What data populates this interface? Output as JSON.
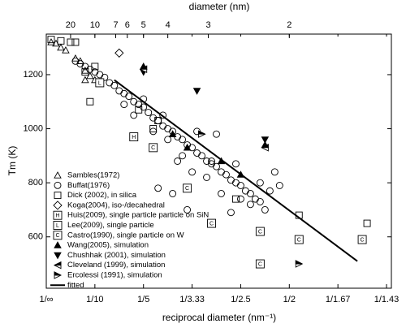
{
  "chart_data": {
    "type": "scatter",
    "x2label": "diameter (nm)",
    "xlabel": "reciprocal diameter (nm⁻¹)",
    "ylabel": "Tm (K)",
    "xlim": [
      0,
      0.71
    ],
    "ylim": [
      410,
      1350
    ],
    "xticks": [
      {
        "value": 0,
        "label": "1/∞"
      },
      {
        "value": 0.1,
        "label": "1/10"
      },
      {
        "value": 0.2,
        "label": "1/5"
      },
      {
        "value": 0.3,
        "label": "1/3.33"
      },
      {
        "value": 0.4,
        "label": "1/2.5"
      },
      {
        "value": 0.5,
        "label": "1/2"
      },
      {
        "value": 0.6,
        "label": "1/1.67"
      },
      {
        "value": 0.7,
        "label": "1/1.43"
      }
    ],
    "x2ticks": [
      20,
      10,
      7,
      6,
      5,
      4,
      3,
      2
    ],
    "yticks": [
      600,
      800,
      1000,
      1200
    ],
    "legend": "lower left",
    "series": [
      {
        "name": "Sambles(1972)",
        "marker": "triangle-up",
        "color": "#000000",
        "x": [
          0.01,
          0.02,
          0.03,
          0.04,
          0.06,
          0.07,
          0.08,
          0.09,
          0.1,
          0.08
        ],
        "values": [
          1320,
          1315,
          1300,
          1290,
          1260,
          1250,
          1215,
          1195,
          1180,
          1180
        ]
      },
      {
        "name": "Buffat(1976)",
        "marker": "circle",
        "color": "#000000",
        "x": [
          0.06,
          0.07,
          0.08,
          0.09,
          0.1,
          0.11,
          0.12,
          0.13,
          0.14,
          0.15,
          0.16,
          0.17,
          0.18,
          0.19,
          0.2,
          0.21,
          0.22,
          0.23,
          0.24,
          0.25,
          0.26,
          0.27,
          0.28,
          0.29,
          0.3,
          0.31,
          0.32,
          0.33,
          0.34,
          0.35,
          0.36,
          0.37,
          0.38,
          0.39,
          0.4,
          0.41,
          0.42,
          0.43,
          0.44,
          0.46,
          0.47,
          0.48,
          0.45,
          0.4,
          0.38,
          0.36,
          0.33,
          0.3,
          0.28,
          0.25,
          0.22,
          0.18,
          0.16,
          0.2,
          0.24,
          0.27,
          0.31,
          0.35,
          0.42,
          0.44,
          0.39,
          0.26,
          0.23,
          0.29,
          0.34
        ],
        "values": [
          1250,
          1240,
          1230,
          1220,
          1210,
          1200,
          1190,
          1170,
          1160,
          1140,
          1130,
          1120,
          1100,
          1090,
          1080,
          1060,
          1040,
          1030,
          1010,
          1000,
          990,
          970,
          960,
          940,
          930,
          910,
          900,
          880,
          870,
          860,
          840,
          830,
          810,
          800,
          790,
          770,
          760,
          740,
          730,
          770,
          840,
          790,
          700,
          740,
          690,
          760,
          820,
          840,
          900,
          960,
          990,
          1050,
          1090,
          1110,
          1050,
          880,
          990,
          980,
          720,
          800,
          870,
          760,
          780,
          700,
          880
        ]
      },
      {
        "name": "Dick (2002), in silica",
        "marker": "square",
        "color": "#000000",
        "x": [
          0.01,
          0.03,
          0.05,
          0.06,
          0.1,
          0.08,
          0.09,
          0.19,
          0.22,
          0.23,
          0.39,
          0.52,
          0.66
        ],
        "values": [
          1330,
          1325,
          1320,
          1320,
          1230,
          1210,
          1100,
          1070,
          1000,
          1030,
          740,
          680,
          650
        ]
      },
      {
        "name": "Koga(2004), iso-/decahedral",
        "marker": "diamond",
        "color": "#000000",
        "x": [
          0.15
        ],
        "values": [
          1280
        ]
      },
      {
        "name": "Huis(2009), single particle particle on SiN",
        "marker": "square-letter",
        "marker_label": "H",
        "color": "#000000",
        "x": [
          0.18
        ],
        "values": [
          970
        ]
      },
      {
        "name": "Lee(2009), single particle",
        "marker": "square-letter",
        "marker_label": "L",
        "color": "#000000",
        "x": [
          0.11
        ],
        "values": [
          1170
        ]
      },
      {
        "name": "Castro(1990), single particle on W",
        "marker": "square-letter",
        "marker_label": "C",
        "color": "#000000",
        "x": [
          0.22,
          0.29,
          0.34,
          0.44,
          0.52,
          0.44,
          0.65
        ],
        "values": [
          930,
          780,
          650,
          620,
          590,
          500,
          590
        ]
      },
      {
        "name": "Wang(2005), simulation",
        "marker": "triangle-up-filled",
        "color": "#000000",
        "x": [
          0.2,
          0.26,
          0.29,
          0.36,
          0.4,
          0.45
        ],
        "values": [
          1230,
          980,
          930,
          880,
          830,
          940
        ]
      },
      {
        "name": "Chushhak (2001), simulation",
        "marker": "triangle-down-filled",
        "color": "#000000",
        "x": [
          0.2,
          0.31,
          0.45
        ],
        "values": [
          1210,
          1140,
          960
        ]
      },
      {
        "name": "Cleveland (1999), simulation",
        "marker": "triangle-left-half",
        "color": "#000000",
        "x": [
          0.2,
          0.45
        ],
        "values": [
          1220,
          930
        ]
      },
      {
        "name": "Ercolessi (1991), simulation",
        "marker": "triangle-right-half",
        "color": "#000000",
        "x": [
          0.32,
          0.52
        ],
        "values": [
          980,
          500
        ]
      },
      {
        "name": "fitted",
        "marker": "line",
        "color": "#000000",
        "x": [
          0.14,
          0.64
        ],
        "values": [
          1180,
          510
        ]
      }
    ]
  }
}
